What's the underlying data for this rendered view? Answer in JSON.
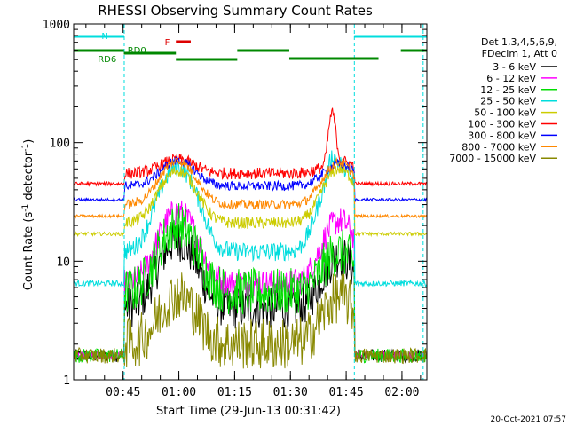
{
  "chart_data": {
    "type": "line",
    "title": "RHESSI Observing Summary Count Rates",
    "xlabel": "Start Time (29-Jun-13 00:31:42)",
    "ylabel_main": "Count Rate (s",
    "ylabel_sup1": "-1",
    "ylabel_mid": " detector",
    "ylabel_sup2": "-1",
    "ylabel_end": ")",
    "y_scale": "log",
    "ylim": [
      1,
      1000
    ],
    "xlim_minutes": [
      0,
      95
    ],
    "x_ticks": [
      {
        "label": "00:45",
        "t": 13.3
      },
      {
        "label": "01:00",
        "t": 28.3
      },
      {
        "label": "01:15",
        "t": 43.3
      },
      {
        "label": "01:30",
        "t": 58.3
      },
      {
        "label": "01:45",
        "t": 73.3
      },
      {
        "label": "02:00",
        "t": 88.3
      }
    ],
    "y_ticks": [
      {
        "label": "1",
        "v": 1
      },
      {
        "label": "10",
        "v": 10
      },
      {
        "label": "100",
        "v": 100
      },
      {
        "label": "1000",
        "v": 1000
      }
    ],
    "legend_header": [
      "Det 1,3,4,5,6,9,",
      "FDecim 1, Att 0"
    ],
    "legend_position": "right",
    "series": [
      {
        "name": "3 - 6 keV",
        "color": "#000000",
        "night": 1.6,
        "base": 4.0,
        "peak1": 15,
        "peak2": 11,
        "flare": 1.0,
        "hi": 1.0,
        "noise": 0.18
      },
      {
        "name": "6 - 12 keV",
        "color": "#ff00ff",
        "night": 1.6,
        "base": 6.5,
        "peak1": 26,
        "peak2": 22,
        "flare": 1.0,
        "hi": 1.0,
        "noise": 0.12
      },
      {
        "name": "12 - 25 keV",
        "color": "#00dd00",
        "night": 1.6,
        "base": 5.5,
        "peak1": 20,
        "peak2": 12,
        "flare": 1.0,
        "hi": 1.0,
        "noise": 0.2
      },
      {
        "name": "25 - 50 keV",
        "color": "#00dddd",
        "night": 6.5,
        "base": 12,
        "peak1": 62,
        "peak2": 65,
        "flare": 1.3,
        "hi": 1.0,
        "noise": 0.08
      },
      {
        "name": "50 - 100 keV",
        "color": "#cccc00",
        "night": 17,
        "base": 21,
        "peak1": 58,
        "peak2": 60,
        "flare": 1.0,
        "hi": 1.0,
        "noise": 0.05
      },
      {
        "name": "100 - 300 keV",
        "color": "#ff0000",
        "night": 45,
        "base": 55,
        "peak1": 72,
        "peak2": 70,
        "flare": 2.6,
        "hi": 1.0,
        "noise": 0.05
      },
      {
        "name": "300 - 800 keV",
        "color": "#0000ff",
        "night": 33,
        "base": 43,
        "peak1": 70,
        "peak2": 66,
        "flare": 1.0,
        "hi": 1.0,
        "noise": 0.04
      },
      {
        "name": "800 - 7000 keV",
        "color": "#ff8800",
        "night": 24,
        "base": 30,
        "peak1": 70,
        "peak2": 68,
        "flare": 1.0,
        "hi": 1.0,
        "noise": 0.04
      },
      {
        "name": "7000 - 15000 keV",
        "color": "#888800",
        "night": 1.6,
        "base": 2.0,
        "peak1": 5.2,
        "peak2": 5.0,
        "flare": 1.0,
        "hi": 1.0,
        "noise": 0.22
      }
    ],
    "annotations": {
      "night_label": "N",
      "flare_label": "F",
      "saa_labels": [
        "RD0",
        "RD6"
      ],
      "night_color": "#00dddd",
      "flare_color": "#dd0000",
      "saa_color": "#008800"
    },
    "night_intervals_minutes": [
      [
        0,
        13.6
      ],
      [
        75.5,
        95
      ]
    ],
    "timestamp": "20-Oct-2021 07:57"
  }
}
